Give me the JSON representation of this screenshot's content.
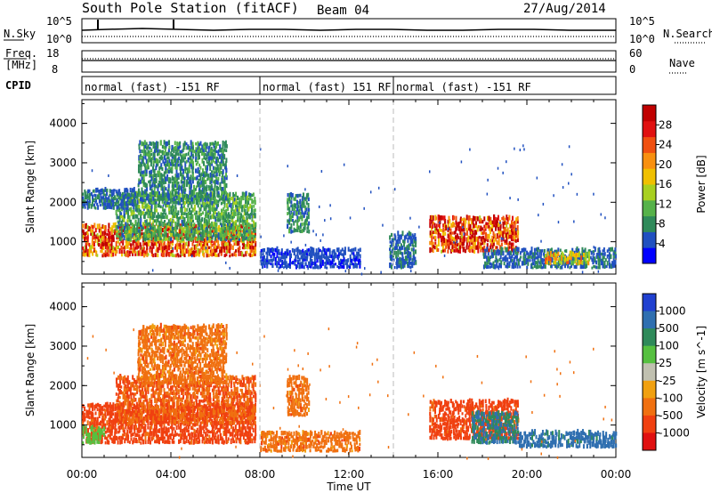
{
  "header": {
    "station": "South Pole Station (fitACF)",
    "beam": "Beam 04",
    "date": "27/Aug/2014"
  },
  "strip_nsky": {
    "label": "N.Sky",
    "left_ticks": [
      "10^5",
      "10^0"
    ],
    "right_ticks": [
      "10^5",
      "10^0"
    ],
    "right_label": "N.Search"
  },
  "strip_freq": {
    "label_lines": [
      "Freq.",
      "[MHz]"
    ],
    "left_ticks": [
      "18",
      "8"
    ],
    "right_ticks": [
      "60",
      "0"
    ],
    "right_label": "Nave"
  },
  "cpid": {
    "label": "CPID",
    "segments": [
      {
        "text": "normal (fast) -151 RF",
        "start_hour": 0,
        "end_hour": 8
      },
      {
        "text": "normal (fast) 151 RF",
        "start_hour": 8,
        "end_hour": 14
      },
      {
        "text": "normal (fast) -151 RF",
        "start_hour": 14,
        "end_hour": 24
      }
    ]
  },
  "colors": {
    "power_scale": [
      "#0000ff",
      "#2050c0",
      "#2f8a5a",
      "#56b24a",
      "#a8d020",
      "#f0c000",
      "#f89010",
      "#f05010",
      "#e01010",
      "#c00000"
    ],
    "velocity_scale": [
      "#2040d0",
      "#2f6fb0",
      "#2f8a5a",
      "#56c040",
      "#c0c0b0",
      "#f0a010",
      "#f07010",
      "#f04010",
      "#e01010"
    ]
  },
  "chart_data": [
    {
      "type": "heatmap",
      "title": "Power",
      "ylabel": "Slant Range [km]",
      "xlabel": "",
      "ylim": [
        180,
        4600
      ],
      "yticks": [
        "1000",
        "2000",
        "3000",
        "4000"
      ],
      "colorbar": {
        "label": "Power [dB]",
        "ticks": [
          "4",
          "8",
          "12",
          "16",
          "20",
          "24",
          "28"
        ],
        "range": [
          0,
          32
        ]
      },
      "blobs": [
        {
          "x0": 0.0,
          "x1": 7.8,
          "y0": 600,
          "y1": 1400,
          "value": 24
        },
        {
          "x0": 1.5,
          "x1": 7.8,
          "y0": 1000,
          "y1": 2200,
          "value": 10
        },
        {
          "x0": 2.5,
          "x1": 6.5,
          "y0": 2000,
          "y1": 3500,
          "value": 8
        },
        {
          "x0": 0.0,
          "x1": 2.5,
          "y0": 1800,
          "y1": 2300,
          "value": 6
        },
        {
          "x0": 8.0,
          "x1": 12.5,
          "y0": 300,
          "y1": 800,
          "value": 4
        },
        {
          "x0": 9.2,
          "x1": 10.2,
          "y0": 1200,
          "y1": 2200,
          "value": 8
        },
        {
          "x0": 13.8,
          "x1": 15.0,
          "y0": 300,
          "y1": 1200,
          "value": 6
        },
        {
          "x0": 15.6,
          "x1": 19.6,
          "y0": 700,
          "y1": 1600,
          "value": 26
        },
        {
          "x0": 18.0,
          "x1": 24.0,
          "y0": 300,
          "y1": 800,
          "value": 6
        },
        {
          "x0": 20.8,
          "x1": 22.8,
          "y0": 400,
          "y1": 700,
          "value": 18
        }
      ]
    },
    {
      "type": "heatmap",
      "title": "Velocity",
      "ylabel": "Slant Range [km]",
      "xlabel": "Time UT",
      "ylim": [
        180,
        4600
      ],
      "yticks": [
        "1000",
        "2000",
        "3000",
        "4000"
      ],
      "xticks": [
        "00:00",
        "04:00",
        "08:00",
        "12:00",
        "16:00",
        "20:00",
        "00:00"
      ],
      "colorbar": {
        "label": "Velocity [m s^-1]",
        "ticks": [
          "1000",
          "500",
          "100",
          "25",
          "-25",
          "-100",
          "-500",
          "-1000"
        ]
      },
      "blobs": [
        {
          "x0": 0.0,
          "x1": 7.8,
          "y0": 500,
          "y1": 1500,
          "value": -300
        },
        {
          "x0": 1.5,
          "x1": 7.8,
          "y0": 1000,
          "y1": 2200,
          "value": -200
        },
        {
          "x0": 2.5,
          "x1": 6.5,
          "y0": 2000,
          "y1": 3500,
          "value": -150
        },
        {
          "x0": 0.0,
          "x1": 1.0,
          "y0": 500,
          "y1": 900,
          "value": 50
        },
        {
          "x0": 8.0,
          "x1": 12.5,
          "y0": 300,
          "y1": 800,
          "value": -150
        },
        {
          "x0": 9.2,
          "x1": 10.2,
          "y0": 1200,
          "y1": 2200,
          "value": -150
        },
        {
          "x0": 15.6,
          "x1": 19.6,
          "y0": 600,
          "y1": 1600,
          "value": -300
        },
        {
          "x0": 17.5,
          "x1": 19.6,
          "y0": 500,
          "y1": 1300,
          "value": 200
        },
        {
          "x0": 19.6,
          "x1": 24.0,
          "y0": 400,
          "y1": 800,
          "value": 300
        }
      ]
    }
  ]
}
